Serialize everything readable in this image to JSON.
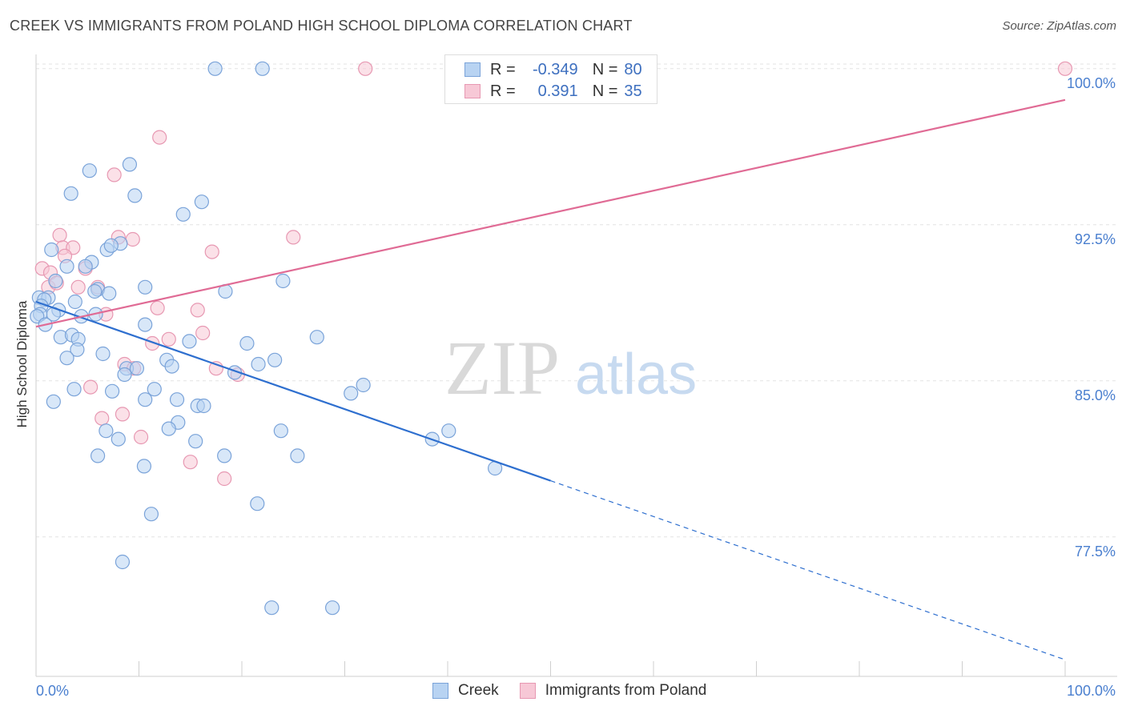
{
  "title": "CREEK VS IMMIGRANTS FROM POLAND HIGH SCHOOL DIPLOMA CORRELATION CHART",
  "source": "Source: ZipAtlas.com",
  "watermark": {
    "zip": "ZIP",
    "atlas": "atlas"
  },
  "colors": {
    "creek_fill": "#b8d3f2",
    "creek_stroke": "#7aa3d9",
    "creek_line": "#2e6fcf",
    "poland_fill": "#f7c8d6",
    "poland_stroke": "#e798b2",
    "poland_line": "#e06b95",
    "tick_label": "#4a7fcf",
    "grid": "#e3e3e3"
  },
  "legend_top": {
    "rows": [
      {
        "r_label": "R =",
        "r_value": "-0.349",
        "n_label": "N =",
        "n_value": "80"
      },
      {
        "r_label": "R =",
        "r_value": "0.391",
        "n_label": "N =",
        "n_value": "35"
      }
    ]
  },
  "legend_bottom": {
    "items": [
      "Creek",
      "Immigrants from Poland"
    ]
  },
  "chart_data": {
    "type": "scatter",
    "title": "CREEK VS IMMIGRANTS FROM POLAND HIGH SCHOOL DIPLOMA CORRELATION CHART",
    "xlabel": "",
    "ylabel": "High School Diploma",
    "xlim": [
      0,
      100
    ],
    "ylim": [
      70.8,
      100.8
    ],
    "x_tick_labels": [
      "0.0%",
      "100.0%"
    ],
    "y_ticks": [
      77.5,
      85.0,
      92.5,
      100.0
    ],
    "y_tick_labels": [
      "77.5%",
      "85.0%",
      "92.5%",
      "100.0%"
    ],
    "grid": true,
    "legend_position": "top-center",
    "series": [
      {
        "name": "Creek",
        "r": -0.349,
        "n": 80,
        "trend": {
          "x": [
            0,
            50
          ],
          "y": [
            88.8,
            80.2
          ],
          "dashed_to": [
            100,
            71.6
          ]
        },
        "points": [
          [
            17.4,
            100.0
          ],
          [
            22.0,
            100.0
          ],
          [
            5.2,
            95.1
          ],
          [
            9.1,
            95.4
          ],
          [
            3.4,
            94.0
          ],
          [
            9.6,
            93.9
          ],
          [
            16.1,
            93.6
          ],
          [
            14.3,
            93.0
          ],
          [
            8.2,
            91.6
          ],
          [
            6.9,
            91.3
          ],
          [
            7.3,
            91.5
          ],
          [
            1.5,
            91.3
          ],
          [
            3.0,
            90.5
          ],
          [
            5.4,
            90.7
          ],
          [
            4.8,
            90.5
          ],
          [
            24.0,
            89.8
          ],
          [
            1.9,
            89.8
          ],
          [
            10.6,
            89.5
          ],
          [
            18.4,
            89.3
          ],
          [
            6.0,
            89.4
          ],
          [
            5.7,
            89.3
          ],
          [
            7.1,
            89.2
          ],
          [
            0.3,
            89.0
          ],
          [
            1.2,
            89.0
          ],
          [
            0.8,
            88.9
          ],
          [
            3.8,
            88.8
          ],
          [
            0.5,
            88.6
          ],
          [
            2.2,
            88.4
          ],
          [
            1.7,
            88.2
          ],
          [
            0.4,
            88.2
          ],
          [
            5.8,
            88.2
          ],
          [
            0.1,
            88.1
          ],
          [
            4.4,
            88.1
          ],
          [
            0.9,
            87.7
          ],
          [
            10.6,
            87.7
          ],
          [
            27.3,
            87.1
          ],
          [
            2.4,
            87.1
          ],
          [
            3.5,
            87.2
          ],
          [
            4.1,
            87.0
          ],
          [
            14.9,
            86.9
          ],
          [
            20.5,
            86.8
          ],
          [
            4.0,
            86.5
          ],
          [
            6.5,
            86.3
          ],
          [
            3.0,
            86.1
          ],
          [
            12.7,
            86.0
          ],
          [
            23.2,
            86.0
          ],
          [
            21.6,
            85.8
          ],
          [
            13.2,
            85.7
          ],
          [
            8.8,
            85.6
          ],
          [
            9.8,
            85.6
          ],
          [
            8.6,
            85.3
          ],
          [
            19.3,
            85.4
          ],
          [
            31.8,
            84.8
          ],
          [
            3.7,
            84.6
          ],
          [
            7.4,
            84.5
          ],
          [
            11.5,
            84.6
          ],
          [
            30.6,
            84.4
          ],
          [
            10.6,
            84.1
          ],
          [
            1.7,
            84.0
          ],
          [
            13.7,
            84.1
          ],
          [
            15.7,
            83.8
          ],
          [
            16.3,
            83.8
          ],
          [
            13.8,
            83.0
          ],
          [
            12.9,
            82.7
          ],
          [
            23.8,
            82.6
          ],
          [
            6.8,
            82.6
          ],
          [
            40.1,
            82.6
          ],
          [
            38.5,
            82.2
          ],
          [
            8.0,
            82.2
          ],
          [
            15.5,
            82.1
          ],
          [
            6.0,
            81.4
          ],
          [
            18.3,
            81.4
          ],
          [
            25.4,
            81.4
          ],
          [
            10.5,
            80.9
          ],
          [
            44.6,
            80.8
          ],
          [
            21.5,
            79.1
          ],
          [
            11.2,
            78.6
          ],
          [
            8.4,
            76.3
          ],
          [
            22.9,
            74.1
          ],
          [
            28.8,
            74.1
          ]
        ]
      },
      {
        "name": "Immigrants from Poland",
        "r": 0.391,
        "n": 35,
        "trend": {
          "x": [
            0,
            100
          ],
          "y": [
            87.6,
            98.5
          ]
        },
        "points": [
          [
            32.0,
            100.0
          ],
          [
            100.0,
            100.0
          ],
          [
            12.0,
            96.7
          ],
          [
            7.6,
            94.9
          ],
          [
            25.0,
            91.9
          ],
          [
            8.0,
            91.9
          ],
          [
            9.4,
            91.8
          ],
          [
            2.3,
            92.0
          ],
          [
            2.6,
            91.4
          ],
          [
            3.6,
            91.4
          ],
          [
            17.1,
            91.2
          ],
          [
            2.8,
            91.0
          ],
          [
            0.6,
            90.4
          ],
          [
            4.8,
            90.4
          ],
          [
            1.4,
            90.2
          ],
          [
            6.0,
            89.5
          ],
          [
            4.1,
            89.5
          ],
          [
            1.2,
            89.5
          ],
          [
            2.0,
            89.7
          ],
          [
            11.8,
            88.5
          ],
          [
            15.7,
            88.4
          ],
          [
            6.8,
            88.2
          ],
          [
            16.2,
            87.3
          ],
          [
            12.9,
            87.0
          ],
          [
            11.3,
            86.8
          ],
          [
            8.6,
            85.8
          ],
          [
            9.5,
            85.6
          ],
          [
            17.5,
            85.6
          ],
          [
            19.6,
            85.3
          ],
          [
            5.3,
            84.7
          ],
          [
            8.4,
            83.4
          ],
          [
            6.4,
            83.2
          ],
          [
            10.2,
            82.3
          ],
          [
            15.0,
            81.1
          ],
          [
            18.3,
            80.3
          ]
        ]
      }
    ]
  }
}
